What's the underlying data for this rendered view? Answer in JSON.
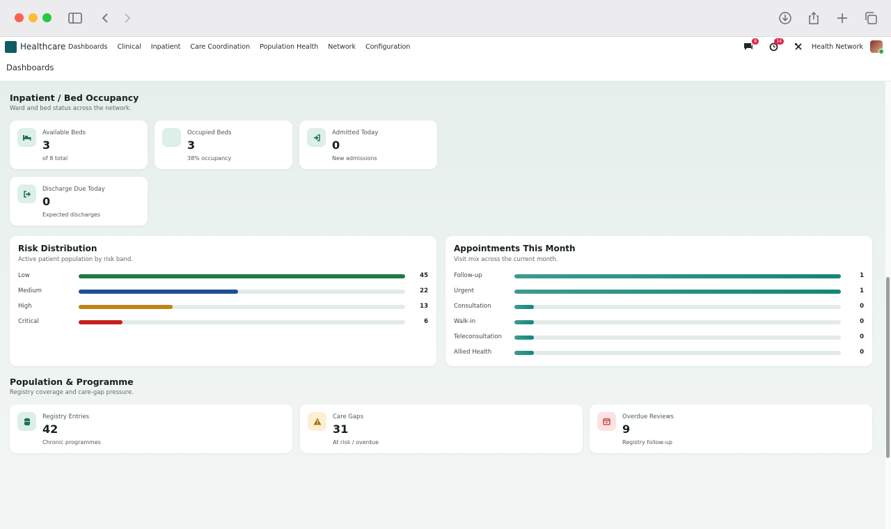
{
  "app": {
    "brand": "Healthcare",
    "menu": [
      "Dashboards",
      "Clinical",
      "Inpatient",
      "Care Coordination",
      "Population Health",
      "Network",
      "Configuration"
    ],
    "breadcrumb": "Dashboards",
    "org_name": "Health Network",
    "messages_count": "8",
    "activities_count": "14"
  },
  "inpatient": {
    "title": "Inpatient / Bed Occupancy",
    "subtitle": "Ward and bed status across the network.",
    "cards": [
      {
        "label": "Available Beds",
        "value": "3",
        "note": "of 8 total",
        "icon": "bed-icon"
      },
      {
        "label": "Occupied Beds",
        "value": "3",
        "note": "38% occupancy",
        "icon": "occupied-bed-icon"
      },
      {
        "label": "Admitted Today",
        "value": "0",
        "note": "New admissions",
        "icon": "sign-in-icon"
      },
      {
        "label": "Discharge Due Today",
        "value": "0",
        "note": "Expected discharges",
        "icon": "sign-out-icon"
      }
    ]
  },
  "risk": {
    "title": "Risk Distribution",
    "subtitle": "Active patient population by risk band.",
    "max": 45,
    "rows": [
      {
        "label": "Low",
        "value": 45,
        "color": "#1b7a45"
      },
      {
        "label": "Medium",
        "value": 22,
        "color": "#1f4e96"
      },
      {
        "label": "High",
        "value": 13,
        "color": "#c08316"
      },
      {
        "label": "Critical",
        "value": 6,
        "color": "#c81d1d"
      }
    ]
  },
  "appointments": {
    "title": "Appointments This Month",
    "subtitle": "Visit mix across the current month.",
    "max": 1,
    "color": "#13877a",
    "rows": [
      {
        "label": "Follow-up",
        "value": 1
      },
      {
        "label": "Urgent",
        "value": 1
      },
      {
        "label": "Consultation",
        "value": 0
      },
      {
        "label": "Walk-in",
        "value": 0
      },
      {
        "label": "Teleconsultation",
        "value": 0
      },
      {
        "label": "Allied Health",
        "value": 0
      }
    ]
  },
  "population": {
    "title": "Population & Programme",
    "subtitle": "Registry coverage and care-gap pressure.",
    "cards": [
      {
        "label": "Registry Entries",
        "value": "42",
        "note": "Chronic programmes",
        "icon": "database-icon",
        "bg": "#dcefe9",
        "fg": "#1f6f5f"
      },
      {
        "label": "Care Gaps",
        "value": "31",
        "note": "At risk / overdue",
        "icon": "warning-icon",
        "bg": "#fcefd2",
        "fg": "#a4720a"
      },
      {
        "label": "Overdue Reviews",
        "value": "9",
        "note": "Registry follow-up",
        "icon": "calendar-icon",
        "bg": "#fbe3e3",
        "fg": "#c53030"
      }
    ]
  }
}
